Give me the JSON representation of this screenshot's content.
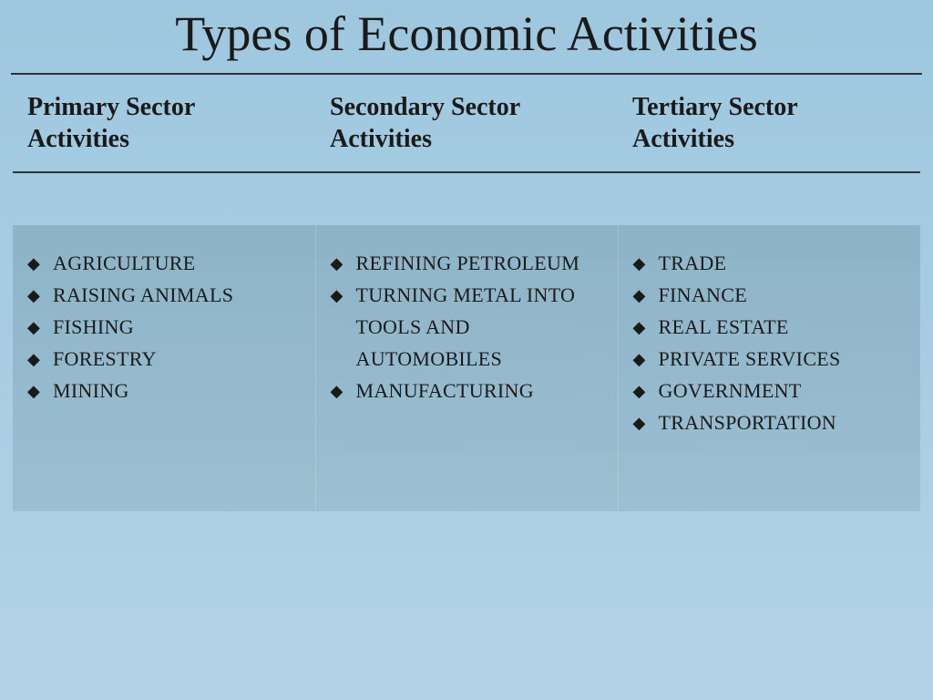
{
  "slide": {
    "title": "Types of Economic Activities",
    "background_gradient": [
      "#9ec7df",
      "#b2d3e5"
    ],
    "title_fontsize": 54,
    "header_fontsize": 28,
    "item_fontsize": 22,
    "bullet_glyph": "◆",
    "bullet_color": "#1a1a1a",
    "text_color": "#1a1a1a",
    "divider_color": "#333333",
    "body_row_background": [
      "rgba(122,160,178,0.55)",
      "rgba(140,175,192,0.5)"
    ],
    "columns": [
      {
        "header": "Primary Sector Activities",
        "items": [
          "Agriculture",
          "Raising Animals",
          "Fishing",
          "Forestry",
          "Mining"
        ]
      },
      {
        "header": "Secondary Sector Activities",
        "items": [
          "Refining Petroleum",
          "Turning metal into tools and automobiles",
          "Manufacturing"
        ]
      },
      {
        "header": "Tertiary Sector Activities",
        "items": [
          "Trade",
          "Finance",
          "Real Estate",
          "Private Services",
          "Government",
          "Transportation"
        ]
      }
    ]
  }
}
